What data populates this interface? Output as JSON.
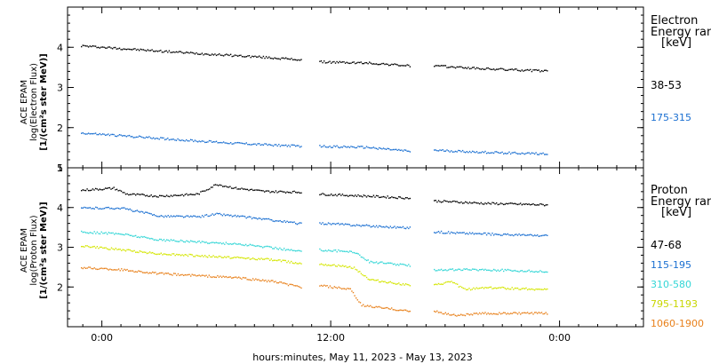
{
  "chart_data": [
    {
      "type": "scatter",
      "panel": "electron",
      "ylabel_lines": [
        "ACE EPAM",
        "log(Electron Flux)",
        "[1/(cm²s ster MeV)]"
      ],
      "ylim": [
        1,
        5
      ],
      "yticks": [
        "1",
        "2",
        "3",
        "4"
      ],
      "legend_title": [
        "Electron",
        "Energy ran",
        "[keV]"
      ],
      "series": [
        {
          "name": "38-53",
          "color": "#000000",
          "segments": [
            {
              "x": [
                -1.1,
                2,
                5,
                8,
                10.5
              ],
              "y": [
                4.05,
                3.95,
                3.86,
                3.78,
                3.7
              ]
            },
            {
              "x": [
                11.4,
                14,
                16.2
              ],
              "y": [
                3.65,
                3.62,
                3.55
              ]
            },
            {
              "x": [
                17.4,
                20,
                23.4
              ],
              "y": [
                3.55,
                3.48,
                3.42
              ]
            }
          ]
        },
        {
          "name": "175-315",
          "color": "#1a6fd1",
          "segments": [
            {
              "x": [
                -1.1,
                2,
                5,
                8,
                10.5
              ],
              "y": [
                1.88,
                1.78,
                1.68,
                1.6,
                1.55
              ]
            },
            {
              "x": [
                11.4,
                14,
                16.2
              ],
              "y": [
                1.55,
                1.52,
                1.42
              ]
            },
            {
              "x": [
                17.4,
                20,
                23.4
              ],
              "y": [
                1.45,
                1.4,
                1.36
              ]
            }
          ]
        }
      ]
    },
    {
      "type": "scatter",
      "panel": "proton",
      "ylabel_lines": [
        "ACE EPAM",
        "log(Proton Flux)",
        "[1/(cm²s ster MeV)]"
      ],
      "ylim": [
        1,
        5
      ],
      "yticks": [
        "2",
        "3",
        "4",
        "5"
      ],
      "legend_title": [
        "Proton",
        "Energy ran",
        "[keV]"
      ],
      "series": [
        {
          "name": "47-68",
          "color": "#000000",
          "segments": [
            {
              "x": [
                -1.1,
                0.6,
                1.3,
                3,
                5,
                6,
                7,
                8.5,
                10.5
              ],
              "y": [
                4.45,
                4.5,
                4.35,
                4.3,
                4.35,
                4.6,
                4.5,
                4.42,
                4.4
              ]
            },
            {
              "x": [
                11.4,
                14,
                16.2
              ],
              "y": [
                4.35,
                4.3,
                4.25
              ]
            },
            {
              "x": [
                17.4,
                20,
                23.4
              ],
              "y": [
                4.18,
                4.12,
                4.08
              ]
            }
          ]
        },
        {
          "name": "115-195",
          "color": "#1a6fd1",
          "segments": [
            {
              "x": [
                -1.1,
                1,
                3,
                5,
                6,
                8.5,
                10.5
              ],
              "y": [
                4.0,
                4.0,
                3.8,
                3.78,
                3.85,
                3.72,
                3.6
              ]
            },
            {
              "x": [
                11.4,
                14,
                16.2
              ],
              "y": [
                3.62,
                3.55,
                3.5
              ]
            },
            {
              "x": [
                17.4,
                20,
                23.4
              ],
              "y": [
                3.4,
                3.35,
                3.3
              ]
            }
          ]
        },
        {
          "name": "310-580",
          "color": "#33d6d6",
          "segments": [
            {
              "x": [
                -1.1,
                1,
                3,
                5,
                7,
                9,
                10.5
              ],
              "y": [
                3.4,
                3.35,
                3.2,
                3.15,
                3.1,
                3.0,
                2.9
              ]
            },
            {
              "x": [
                11.4,
                13.2,
                14,
                16.2
              ],
              "y": [
                2.95,
                2.9,
                2.65,
                2.55
              ]
            },
            {
              "x": [
                17.4,
                20,
                23.4
              ],
              "y": [
                2.45,
                2.45,
                2.4
              ]
            }
          ]
        },
        {
          "name": "795-1193",
          "color": "#d4e600",
          "segments": [
            {
              "x": [
                -1.1,
                1,
                3,
                5,
                7,
                9,
                10.5
              ],
              "y": [
                3.05,
                2.95,
                2.85,
                2.8,
                2.75,
                2.7,
                2.6
              ]
            },
            {
              "x": [
                11.4,
                13.2,
                14,
                16.2
              ],
              "y": [
                2.6,
                2.5,
                2.2,
                2.05
              ]
            },
            {
              "x": [
                17.4,
                18.3,
                19,
                20,
                23.4
              ],
              "y": [
                2.05,
                2.15,
                1.95,
                2.0,
                1.95
              ]
            }
          ]
        },
        {
          "name": "1060-1900",
          "color": "#e8801a",
          "segments": [
            {
              "x": [
                -1.1,
                1,
                3,
                5,
                7,
                9,
                10.5
              ],
              "y": [
                2.5,
                2.45,
                2.35,
                2.3,
                2.25,
                2.15,
                2.0
              ]
            },
            {
              "x": [
                11.4,
                13,
                13.6,
                14.5,
                16.2
              ],
              "y": [
                2.05,
                1.95,
                1.55,
                1.5,
                1.4
              ]
            },
            {
              "x": [
                17.4,
                18.5,
                20,
                23.4
              ],
              "y": [
                1.4,
                1.3,
                1.35,
                1.35
              ]
            }
          ]
        }
      ]
    }
  ],
  "x_axis": {
    "label": "hours:minutes, May 11, 2023 - May 13, 2023",
    "range_hours": [
      -1.8,
      28.4
    ],
    "ticks": [
      {
        "h": 0,
        "label": "0:00"
      },
      {
        "h": 12,
        "label": "12:00"
      },
      {
        "h": 24,
        "label": "0:00"
      }
    ]
  }
}
